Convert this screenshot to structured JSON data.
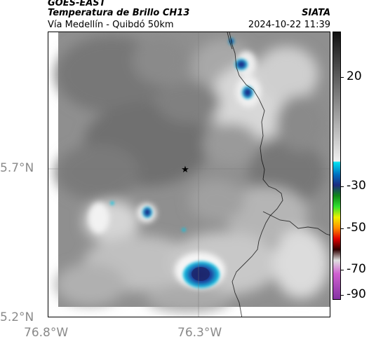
{
  "header": {
    "source": "GOES-EAST",
    "product": "Temperatura de Brillo CH13",
    "region": "Vía Medellín - Quibdó 50km",
    "organization": "SIATA",
    "datetime": "2024-10-22 11:39"
  },
  "map": {
    "lat_ticks": [
      {
        "value": 5.7,
        "label": "5.7°N"
      },
      {
        "value": 5.2,
        "label": "5.2°N"
      }
    ],
    "lon_ticks": [
      {
        "value": -76.8,
        "label": "76.8°W"
      },
      {
        "value": -76.3,
        "label": "76.3°W"
      }
    ],
    "marker": {
      "symbol": "★",
      "description": "reference point"
    }
  },
  "colorbar": {
    "ticks": [
      {
        "value": 20,
        "label": "20"
      },
      {
        "value": -30,
        "label": "-30"
      },
      {
        "value": -50,
        "label": "-50"
      },
      {
        "value": -70,
        "label": "-70"
      },
      {
        "value": -90,
        "label": "-90"
      }
    ],
    "colors": {
      "warm_black": "#1a1a1a",
      "warm_white": "#ffffff",
      "cyan": "#00c8e6",
      "blue": "#1e3c9c",
      "green": "#17c11e",
      "yellow": "#f0f000",
      "orange": "#ff8c00",
      "red": "#e00000",
      "dark": "#300000",
      "magenta": "#c040c0"
    }
  }
}
